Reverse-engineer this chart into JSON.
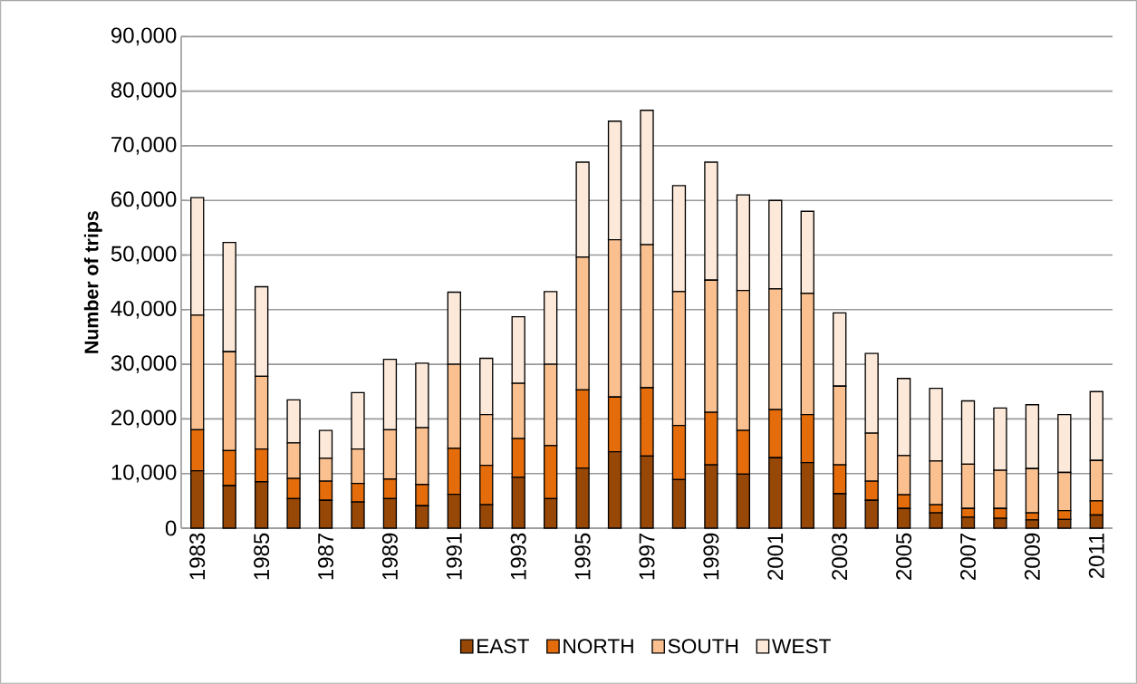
{
  "chart_data": {
    "type": "bar",
    "stacked": true,
    "ylabel": "Number of trips",
    "categories": [
      "1983",
      null,
      "1985",
      null,
      "1987",
      null,
      "1989",
      null,
      "1991",
      null,
      "1993",
      null,
      "1995",
      null,
      "1997",
      null,
      "1999",
      null,
      "2001",
      null,
      "2003",
      null,
      "2005",
      null,
      "2007",
      null,
      "2009",
      null,
      "2011"
    ],
    "series": [
      {
        "name": "EAST",
        "color": "#974706",
        "values": [
          10500,
          7800,
          8500,
          5400,
          5100,
          4800,
          5400,
          4100,
          6200,
          4300,
          9300,
          5400,
          11000,
          14000,
          13200,
          8900,
          11600,
          9900,
          12900,
          12000,
          6300,
          5100,
          3600,
          2800,
          2000,
          1800,
          1500,
          1600,
          2400
        ]
      },
      {
        "name": "NORTH",
        "color": "#e46c0a",
        "values": [
          7500,
          6400,
          6000,
          3700,
          3500,
          3400,
          3600,
          3900,
          8400,
          7200,
          7100,
          9700,
          14300,
          10000,
          12500,
          9900,
          9600,
          8000,
          8800,
          8800,
          5300,
          3500,
          2500,
          1500,
          1600,
          1800,
          1300,
          1600,
          2600
        ]
      },
      {
        "name": "SOUTH",
        "color": "#fac090",
        "values": [
          21000,
          18100,
          13300,
          6500,
          4200,
          6300,
          9000,
          10400,
          15400,
          9300,
          10100,
          14900,
          24300,
          28800,
          26200,
          24500,
          24200,
          25600,
          22100,
          22200,
          14400,
          8800,
          7200,
          8000,
          8100,
          7000,
          8100,
          7000,
          7400
        ]
      },
      {
        "name": "WEST",
        "color": "#fde9d9",
        "values": [
          21500,
          20000,
          16400,
          7900,
          5100,
          10300,
          12900,
          11800,
          13200,
          10300,
          12200,
          13300,
          17400,
          21700,
          24600,
          19400,
          21600,
          17500,
          16200,
          15000,
          13400,
          14600,
          14100,
          13300,
          11600,
          11400,
          11700,
          10600,
          12600
        ]
      }
    ],
    "ylim": [
      0,
      90000
    ],
    "yticks": [
      0,
      {
        "value": 10000,
        "label": "10,000"
      },
      {
        "value": 20000,
        "label": "20,000"
      },
      {
        "value": 30000,
        "label": "30,000"
      },
      {
        "value": 40000,
        "label": "40,000"
      },
      {
        "value": 50000,
        "label": "50,000"
      },
      {
        "value": 60000,
        "label": "60,000"
      },
      {
        "value": 70000,
        "label": "70,000"
      },
      {
        "value": 80000,
        "label": "80,000"
      },
      {
        "value": 90000,
        "label": "90,000"
      }
    ],
    "grid": "y",
    "legend": "bottom"
  }
}
